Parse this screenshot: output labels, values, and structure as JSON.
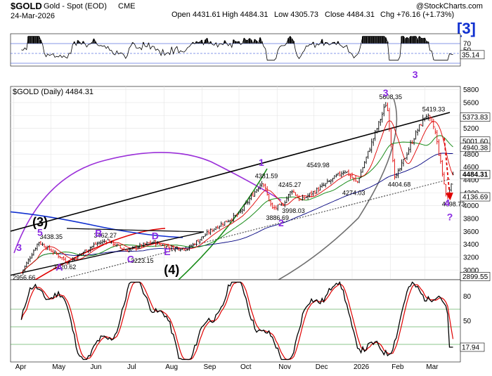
{
  "header": {
    "symbol": "$GOLD",
    "description": "Gold - Spot (EOD)",
    "exchange": "CME",
    "date": "24-Mar-2026",
    "open": "Open 4431.61",
    "high": "High 4484.31",
    "low": "Low 4305.73",
    "close": "Close 4484.31",
    "chg": "Chg +76.16 (+1.73%)",
    "watermark": "@StockCharts.com",
    "badge": "[3]"
  },
  "colors": {
    "price_up": "#000000",
    "price_down": "#e00000",
    "ma50": "#1a8c1a",
    "ma20": "#e00000",
    "ma200": "#00007f",
    "channel": "#000000",
    "cycle_purple": "#9b30d9",
    "cycle_gray": "#707070",
    "cycle_green": "#1a8c1a",
    "cycle_blue": "#1030d0",
    "cycle_red": "#e00000",
    "wave_label": "#8a2be2",
    "stoch_k": "#000000",
    "stoch_d": "#e00000",
    "rsi_fill": "#000000"
  },
  "rsi_panel": {
    "ticks": [
      "70",
      "50",
      "30"
    ],
    "last_value": "35.14"
  },
  "price_panel": {
    "title": "$GOLD (Daily) 4484.31",
    "ticks": [
      "5800",
      "5600",
      "5400",
      "5200",
      "5000",
      "4800",
      "4600",
      "4400",
      "4200",
      "4000",
      "3800",
      "3600",
      "3400",
      "3200",
      "3000"
    ],
    "right_boxes": [
      "5373.83",
      "5001.60",
      "4940.38",
      "4484.31",
      "4136.69",
      "2899.55"
    ],
    "annotations": [
      "5608.35",
      "5419.33",
      "4381.59",
      "4549.98",
      "4245.27",
      "3886.69",
      "3998.03",
      "4274.03",
      "4404.68",
      "4098.73",
      "3438.35",
      "3462.27",
      "3120.62",
      "3223.15",
      "2956.66"
    ],
    "wave_labels": [
      "3",
      "5",
      "3",
      "1",
      "2",
      "3",
      "4",
      "?",
      "A",
      "B",
      "C",
      "D",
      "E"
    ],
    "wave_black": [
      "(3)",
      "(4)"
    ],
    "x_labels": [
      "Apr",
      "May",
      "Jun",
      "Jul",
      "Aug",
      "Sep",
      "Oct",
      "Nov",
      "Dec",
      "2026",
      "Feb",
      "Mar"
    ]
  },
  "stoch_panel": {
    "ticks": [
      "80",
      "50",
      "20"
    ],
    "last_value": "17.94",
    "x_labels": [
      "Apr",
      "May",
      "Jun",
      "Jul",
      "Aug",
      "Sep",
      "Oct",
      "Nov",
      "Dec",
      "2026",
      "Feb",
      "Mar"
    ]
  },
  "chart_data": {
    "type": "line",
    "title": "$GOLD (Daily) 4484.31",
    "x": [
      "2025-04-07",
      "2025-04-21",
      "2025-05-15",
      "2025-06-06",
      "2025-06-16",
      "2025-07-01",
      "2025-07-23",
      "2025-08-05",
      "2025-08-20",
      "2025-09-10",
      "2025-10-01",
      "2025-10-20",
      "2025-10-28",
      "2025-11-05",
      "2025-11-13",
      "2025-11-20",
      "2025-12-12",
      "2025-12-26",
      "2026-01-05",
      "2026-01-29",
      "2026-02-05",
      "2026-02-20",
      "2026-03-02",
      "2026-03-09",
      "2026-03-19",
      "2026-03-24"
    ],
    "y": [
      2956.66,
      3438.35,
      3120.62,
      3400,
      3462.27,
      3300,
      3438,
      3350,
      3330,
      3640,
      3870,
      4381.59,
      3950,
      3998.03,
      4245.27,
      4080,
      4350,
      4549.98,
      4350,
      5608.35,
      4404.68,
      5050,
      5419.33,
      5200,
      4098.73,
      4484.31
    ],
    "ylim": [
      2850,
      5850
    ],
    "rsi": {
      "ticks": [
        30,
        50,
        70
      ],
      "last": 35.14
    },
    "stochastic": {
      "ticks": [
        20,
        50,
        80
      ],
      "last": 17.94
    },
    "grid": true
  }
}
